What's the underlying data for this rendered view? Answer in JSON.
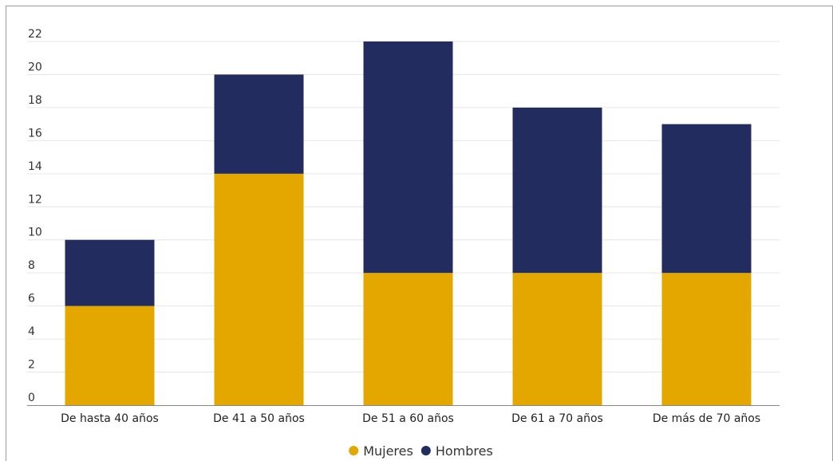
{
  "chart_data": {
    "type": "bar",
    "stacked": true,
    "categories": [
      "De hasta 40 años",
      "De 41 a 50 años",
      "De 51 a 60 años",
      "De 61 a 70 años",
      "De más de 70 años"
    ],
    "series": [
      {
        "name": "Mujeres",
        "values": [
          6,
          14,
          8,
          8,
          8
        ],
        "color": "#e4a700"
      },
      {
        "name": "Hombres",
        "values": [
          4,
          6,
          14,
          10,
          9
        ],
        "color": "#232c5e"
      }
    ],
    "title": "",
    "xlabel": "",
    "ylabel": "",
    "ylim": [
      0,
      22
    ],
    "yticks": [
      0,
      2,
      4,
      6,
      8,
      10,
      12,
      14,
      16,
      18,
      20,
      22
    ],
    "grid": true,
    "legend_position": "bottom-center"
  },
  "colors": {
    "grid": "#e6e6e6",
    "axis": "#888888",
    "frame": "#9a9a9a"
  }
}
